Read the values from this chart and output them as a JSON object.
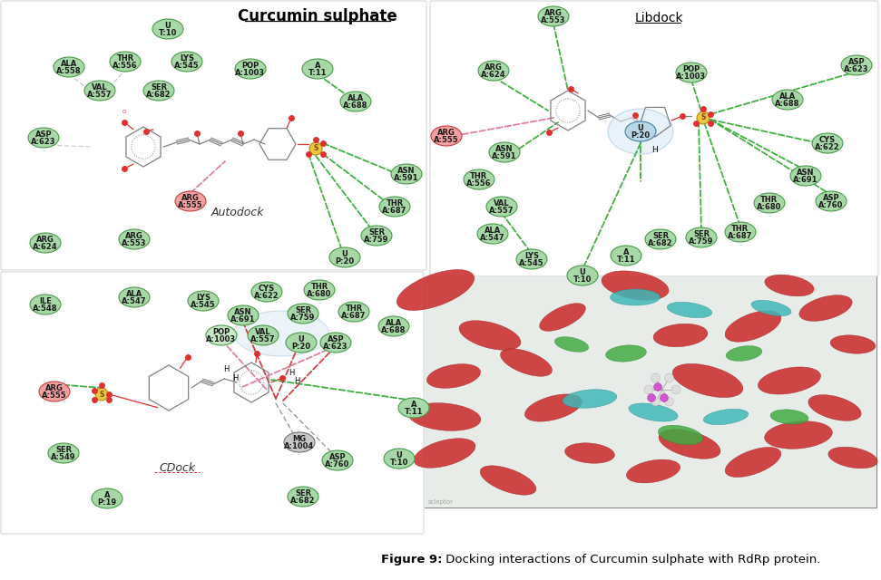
{
  "figure_caption_bold": "Figure 9:",
  "figure_caption_rest": " Docking interactions of Curcumin sulphate with RdRp protein.",
  "title_main": "Curcumin sulphate",
  "title_right": "Libdock",
  "label_autodock": "Autodock",
  "label_cdock": "CDock",
  "background_color": "#ffffff",
  "node_green": "#a8d8a8",
  "node_green_edge": "#4a9a4a",
  "node_pink": "#f4a0a0",
  "node_pink_edge": "#c04040",
  "node_blue": "#b8d8e8",
  "node_blue_edge": "#4080a0",
  "node_gray": "#c8c8c8",
  "node_gray_edge": "#707070",
  "sulfur_color": "#e8c840",
  "sulfur_edge": "#b09010",
  "oxygen_color": "#e03030",
  "green_dash": "#40b040",
  "pink_dash": "#e080a0",
  "red_dash": "#d04040",
  "gray_dash": "#909090",
  "mol_bond_color": "#808080"
}
